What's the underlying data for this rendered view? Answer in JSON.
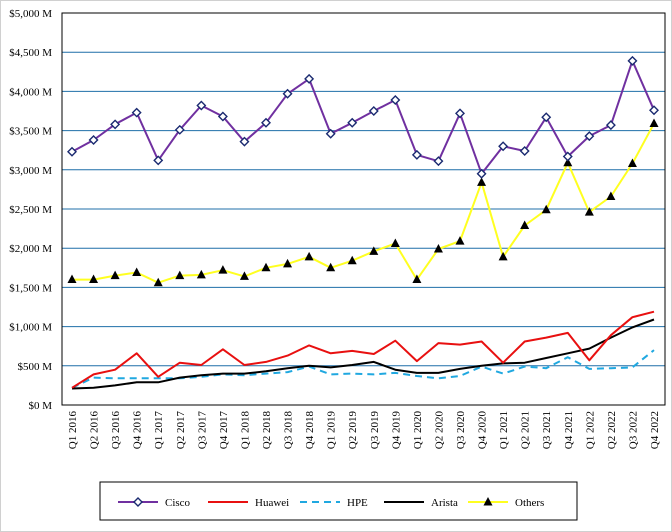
{
  "chart_data": {
    "type": "line",
    "title": "",
    "xlabel": "",
    "ylabel": "",
    "ylim": [
      0,
      5000
    ],
    "yticks": [
      "$0 M",
      "$500 M",
      "$1,000 M",
      "$1,500 M",
      "$2,000 M",
      "$2,500 M",
      "$3,000 M",
      "$3,500 M",
      "$4,000 M",
      "$4,500 M",
      "$5,000 M"
    ],
    "grid": true,
    "legend_position": "bottom",
    "categories": [
      "Q1 2016",
      "Q2 2016",
      "Q3 2016",
      "Q4 2016",
      "Q1 2017",
      "Q2 2017",
      "Q3 2017",
      "Q4 2017",
      "Q1 2018",
      "Q2 2018",
      "Q3 2018",
      "Q4 2018",
      "Q1 2019",
      "Q2 2019",
      "Q3 2019",
      "Q4 2019",
      "Q1 2020",
      "Q2 2020",
      "Q3 2020",
      "Q4 2020",
      "Q1 2021",
      "Q2 2021",
      "Q3 2021",
      "Q4 2021",
      "Q1 2022",
      "Q2 2022",
      "Q3 2022",
      "Q4 2022"
    ],
    "series": [
      {
        "name": "Cisco",
        "color": "#7030a0",
        "marker": "diamond",
        "dash": false,
        "values": [
          3230,
          3380,
          3580,
          3730,
          3120,
          3510,
          3820,
          3680,
          3360,
          3600,
          3970,
          4160,
          3460,
          3600,
          3750,
          3890,
          3190,
          3110,
          3720,
          2950,
          3300,
          3240,
          3670,
          3170,
          3430,
          3570,
          4390,
          3760
        ]
      },
      {
        "name": "Huawei",
        "color": "#e81010",
        "marker": "none",
        "dash": false,
        "values": [
          220,
          390,
          450,
          660,
          360,
          540,
          510,
          710,
          510,
          550,
          630,
          760,
          660,
          690,
          650,
          820,
          560,
          790,
          770,
          810,
          540,
          810,
          860,
          920,
          570,
          890,
          1120,
          1190
        ]
      },
      {
        "name": "HPE",
        "color": "#20a8e0",
        "marker": "none",
        "dash": true,
        "values": [
          220,
          350,
          340,
          340,
          340,
          340,
          360,
          390,
          380,
          400,
          420,
          490,
          390,
          400,
          390,
          410,
          370,
          340,
          370,
          490,
          400,
          490,
          470,
          610,
          460,
          470,
          480,
          700
        ]
      },
      {
        "name": "Arista",
        "color": "#000000",
        "marker": "none",
        "dash": false,
        "values": [
          210,
          220,
          250,
          290,
          290,
          350,
          380,
          400,
          400,
          430,
          470,
          500,
          480,
          510,
          550,
          450,
          410,
          410,
          460,
          500,
          530,
          540,
          600,
          660,
          720,
          860,
          990,
          1090
        ]
      },
      {
        "name": "Others",
        "color": "#ffff20",
        "marker": "triangle",
        "dash": false,
        "values": [
          1600,
          1600,
          1650,
          1690,
          1560,
          1650,
          1660,
          1720,
          1640,
          1750,
          1800,
          1890,
          1750,
          1840,
          1960,
          2060,
          1600,
          1990,
          2090,
          2840,
          1890,
          2290,
          2490,
          3090,
          2460,
          2660,
          3080,
          3590
        ]
      }
    ]
  },
  "colors": {
    "grid": "#1f6fa8",
    "axis": "#000000"
  }
}
